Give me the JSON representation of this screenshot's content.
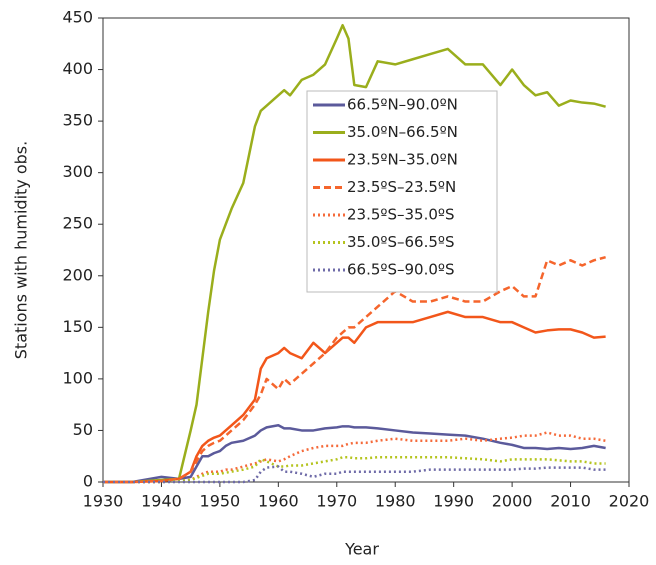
{
  "chart_data": {
    "type": "line",
    "xlabel": "Year",
    "ylabel": "Stations with humidity obs.",
    "xlim": [
      1930,
      2020
    ],
    "xticks": [
      1930,
      1940,
      1950,
      1960,
      1970,
      1980,
      1990,
      2000,
      2010,
      2020
    ],
    "ylim": [
      0,
      450
    ],
    "yticks": [
      0,
      50,
      100,
      150,
      200,
      250,
      300,
      350,
      400,
      450
    ],
    "grid": false,
    "legend": "upper center",
    "x": [
      1930,
      1935,
      1940,
      1943,
      1945,
      1946,
      1947,
      1948,
      1949,
      1950,
      1951,
      1952,
      1954,
      1956,
      1957,
      1958,
      1960,
      1961,
      1962,
      1964,
      1966,
      1968,
      1970,
      1971,
      1972,
      1973,
      1975,
      1977,
      1980,
      1983,
      1986,
      1989,
      1992,
      1995,
      1998,
      2000,
      2002,
      2004,
      2006,
      2008,
      2010,
      2012,
      2014,
      2016
    ],
    "series": [
      {
        "name": "66.5ºN–90.0ºN",
        "color": "#5b5a9b",
        "dash": "solid",
        "values": [
          0,
          0,
          5,
          3,
          5,
          15,
          25,
          25,
          28,
          30,
          35,
          38,
          40,
          45,
          50,
          53,
          55,
          52,
          52,
          50,
          50,
          52,
          53,
          54,
          54,
          53,
          53,
          52,
          50,
          48,
          47,
          46,
          45,
          42,
          38,
          36,
          33,
          33,
          32,
          33,
          32,
          33,
          35,
          33
        ]
      },
      {
        "name": "35.0ºN–66.5ºN",
        "color": "#9aae1c",
        "dash": "solid",
        "values": [
          0,
          0,
          2,
          3,
          50,
          75,
          120,
          165,
          205,
          235,
          250,
          265,
          290,
          345,
          360,
          365,
          375,
          380,
          375,
          390,
          395,
          405,
          430,
          443,
          430,
          385,
          383,
          408,
          405,
          410,
          415,
          420,
          405,
          405,
          385,
          400,
          385,
          375,
          378,
          365,
          370,
          368,
          367,
          364
        ]
      },
      {
        "name": "23.5ºN–35.0ºN",
        "color": "#f2561a",
        "dash": "solid",
        "values": [
          0,
          0,
          1,
          3,
          10,
          25,
          35,
          40,
          43,
          45,
          50,
          55,
          65,
          80,
          110,
          120,
          125,
          130,
          125,
          120,
          135,
          125,
          135,
          140,
          140,
          135,
          150,
          155,
          155,
          155,
          160,
          165,
          160,
          160,
          155,
          155,
          150,
          145,
          147,
          148,
          148,
          145,
          140,
          141
        ]
      },
      {
        "name": "23.5ºS–23.5ºN",
        "color": "#f5652c",
        "dash": "dashed",
        "values": [
          0,
          0,
          1,
          3,
          10,
          20,
          30,
          35,
          38,
          40,
          45,
          50,
          60,
          75,
          85,
          100,
          90,
          100,
          95,
          105,
          115,
          125,
          140,
          145,
          150,
          150,
          160,
          170,
          185,
          175,
          175,
          180,
          175,
          175,
          185,
          190,
          180,
          180,
          215,
          210,
          215,
          210,
          215,
          218
        ]
      },
      {
        "name": "23.5ºS–35.0ºS",
        "color": "#f56a3a",
        "dash": "dotted",
        "values": [
          0,
          0,
          0,
          1,
          2,
          5,
          8,
          10,
          10,
          10,
          12,
          12,
          15,
          18,
          20,
          22,
          20,
          22,
          25,
          30,
          33,
          35,
          35,
          35,
          37,
          38,
          38,
          40,
          42,
          40,
          40,
          40,
          42,
          40,
          42,
          43,
          45,
          45,
          48,
          45,
          45,
          42,
          42,
          40
        ]
      },
      {
        "name": "35.0ºS–66.5ºS",
        "color": "#b5c41f",
        "dash": "dotted",
        "values": [
          0,
          0,
          0,
          1,
          2,
          4,
          6,
          8,
          8,
          8,
          9,
          10,
          12,
          15,
          22,
          20,
          15,
          15,
          16,
          16,
          18,
          20,
          22,
          24,
          24,
          23,
          23,
          24,
          24,
          24,
          24,
          24,
          23,
          22,
          20,
          22,
          22,
          22,
          22,
          21,
          20,
          20,
          18,
          18
        ]
      },
      {
        "name": "66.5ºS–90.0ºS",
        "color": "#6f6ba8",
        "dash": "dotted",
        "values": [
          0,
          0,
          0,
          0,
          0,
          0,
          0,
          0,
          0,
          0,
          0,
          0,
          0,
          2,
          10,
          14,
          15,
          10,
          10,
          8,
          5,
          8,
          8,
          10,
          10,
          10,
          10,
          10,
          10,
          10,
          12,
          12,
          12,
          12,
          12,
          12,
          13,
          13,
          14,
          14,
          14,
          14,
          12,
          12
        ]
      }
    ]
  }
}
